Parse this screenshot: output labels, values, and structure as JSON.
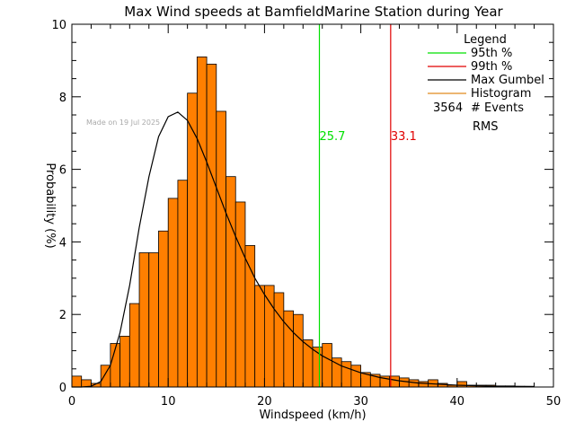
{
  "chart_data": {
    "type": "bar",
    "title": "Max Wind speeds at BamfieldMarine Station during Year",
    "xlabel": "Windspeed (km/h)",
    "ylabel": "Probability (%)",
    "xlim": [
      0,
      50
    ],
    "ylim": [
      0,
      10
    ],
    "xticks": [
      0,
      10,
      20,
      30,
      40,
      50
    ],
    "yticks": [
      0,
      2,
      4,
      6,
      8,
      10
    ],
    "grid": false,
    "legend_position": "top-right",
    "bin_width": 1,
    "bin_start": 0,
    "histogram": [
      0.3,
      0.2,
      0.1,
      0.6,
      1.2,
      1.4,
      2.3,
      3.7,
      3.7,
      4.3,
      5.2,
      5.7,
      8.1,
      9.1,
      8.9,
      7.6,
      5.8,
      5.1,
      3.9,
      2.8,
      2.8,
      2.6,
      2.1,
      2.0,
      1.3,
      1.1,
      1.2,
      0.8,
      0.7,
      0.6,
      0.4,
      0.35,
      0.3,
      0.3,
      0.25,
      0.2,
      0.15,
      0.2,
      0.1,
      0.05,
      0.15,
      0.05,
      0.05,
      0.05,
      0.03,
      0.03,
      0.02,
      0.02
    ],
    "gumbel": {
      "x": [
        0,
        1,
        2,
        3,
        4,
        5,
        6,
        7,
        8,
        9,
        10,
        11,
        12,
        13,
        14,
        15,
        16,
        17,
        18,
        19,
        20,
        21,
        22,
        23,
        24,
        25,
        26,
        28,
        30,
        32,
        34,
        36,
        38,
        40,
        42,
        44,
        46,
        48
      ],
      "y": [
        0.0,
        0.0,
        0.02,
        0.15,
        0.6,
        1.5,
        2.8,
        4.4,
        5.8,
        6.9,
        7.45,
        7.58,
        7.35,
        6.85,
        6.2,
        5.5,
        4.8,
        4.15,
        3.55,
        3.0,
        2.55,
        2.15,
        1.8,
        1.5,
        1.25,
        1.04,
        0.86,
        0.58,
        0.39,
        0.26,
        0.17,
        0.11,
        0.08,
        0.05,
        0.035,
        0.02,
        0.015,
        0.01
      ]
    },
    "p95": 25.7,
    "p99": 33.1,
    "p95_label": "25.7",
    "p99_label": "33.1",
    "colors": {
      "histogram_fill": "#ff7f00",
      "histogram_edge": "#000000",
      "p95_line": "#00e000",
      "p99_line": "#e00000",
      "gumbel_line": "#000000",
      "legend_histogram": "#e08a1e"
    },
    "legend": {
      "title": "Legend",
      "items": [
        {
          "label": "95th %",
          "color": "#00e000"
        },
        {
          "label": "99th %",
          "color": "#e00000"
        },
        {
          "label": "Max Gumbel",
          "color": "#000000"
        },
        {
          "label": "Histogram",
          "color": "#e08a1e"
        }
      ],
      "events_count": "3564",
      "events_label": "# Events",
      "rms_label": "RMS"
    },
    "watermark": "Made on 19 Jul 2025"
  }
}
